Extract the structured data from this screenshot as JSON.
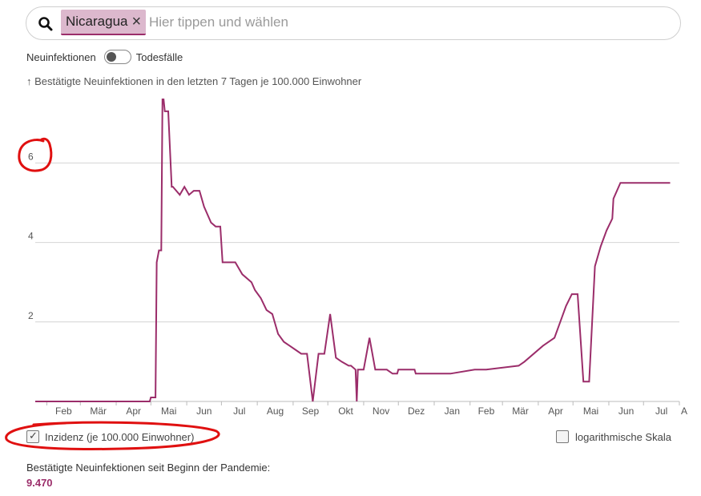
{
  "search": {
    "chip_label": "Nicaragua",
    "chip_remove_glyph": "×",
    "placeholder": "Hier tippen und wählen",
    "icon": "search-icon"
  },
  "toggle": {
    "left_label": "Neuinfektionen",
    "right_label": "Todesfälle",
    "state": "Neuinfektionen"
  },
  "chart_data": {
    "type": "line",
    "title": "↑ Bestätigte Neuinfektionen in den letzten 7 Tagen je 100.000 Einwohner",
    "ylim": [
      0,
      7.6
    ],
    "yticks": [
      2,
      4,
      6
    ],
    "xticks": [
      "Feb",
      "Mär",
      "Apr",
      "Mai",
      "Jun",
      "Jul",
      "Aug",
      "Sep",
      "Okt",
      "Nov",
      "Dez",
      "Jan",
      "Feb",
      "Mär",
      "Apr",
      "Mai",
      "Jun",
      "Jul",
      "A"
    ],
    "grid": true,
    "color": "#9b2d6a",
    "series": [
      {
        "x": [
          "2020-01-22",
          "2020-04-30",
          "2020-05-01",
          "2020-05-05",
          "2020-05-06",
          "2020-05-08",
          "2020-05-10",
          "2020-05-11",
          "2020-05-12",
          "2020-05-13",
          "2020-05-14",
          "2020-05-15",
          "2020-05-16",
          "2020-05-19",
          "2020-05-20",
          "2020-05-26",
          "2020-05-30",
          "2020-06-03",
          "2020-06-07",
          "2020-06-12",
          "2020-06-16",
          "2020-06-22",
          "2020-06-26",
          "2020-06-30",
          "2020-07-02",
          "2020-07-07",
          "2020-07-11",
          "2020-07-13",
          "2020-07-19",
          "2020-07-27",
          "2020-07-30",
          "2020-08-04",
          "2020-08-09",
          "2020-08-14",
          "2020-08-19",
          "2020-08-24",
          "2020-08-29",
          "2020-09-03",
          "2020-09-08",
          "2020-09-13",
          "2020-09-18",
          "2020-09-23",
          "2020-09-28",
          "2020-10-03",
          "2020-10-08",
          "2020-10-13",
          "2020-10-19",
          "2020-10-20",
          "2020-10-21",
          "2020-10-25",
          "2020-10-26",
          "2020-10-27",
          "2020-10-28",
          "2020-11-01",
          "2020-11-06",
          "2020-11-11",
          "2020-11-16",
          "2020-11-21",
          "2020-11-26",
          "2020-11-30",
          "2020-12-01",
          "2020-12-15",
          "2020-12-16",
          "2020-12-17",
          "2021-01-10",
          "2021-01-15",
          "2021-02-05",
          "2021-02-10",
          "2021-02-15",
          "2021-03-15",
          "2021-03-20",
          "2021-04-05",
          "2021-04-10",
          "2021-04-15",
          "2021-04-20",
          "2021-04-25",
          "2021-04-30",
          "2021-05-05",
          "2021-05-10",
          "2021-05-15",
          "2021-05-20",
          "2021-05-25",
          "2021-05-30",
          "2021-06-04",
          "2021-06-05",
          "2021-06-11",
          "2021-06-12",
          "2021-06-18",
          "2021-06-24",
          "2021-07-01",
          "2021-07-06",
          "2021-07-12",
          "2021-07-17",
          "2021-07-24"
        ],
        "y": [
          0,
          0,
          0.1,
          0.1,
          3.5,
          3.8,
          3.8,
          7.6,
          7.6,
          7.3,
          7.3,
          7.3,
          7.3,
          5.4,
          5.4,
          5.2,
          5.4,
          5.2,
          5.3,
          5.3,
          4.9,
          4.5,
          4.4,
          4.4,
          3.5,
          3.5,
          3.5,
          3.5,
          3.2,
          3.0,
          2.8,
          2.6,
          2.3,
          2.2,
          1.7,
          1.5,
          1.4,
          1.3,
          1.2,
          1.2,
          0,
          1.2,
          1.2,
          2.2,
          1.1,
          1.0,
          0.9,
          0.9,
          0.9,
          0.8,
          0,
          0.8,
          0.8,
          0.8,
          1.6,
          0.8,
          0.8,
          0.8,
          0.7,
          0.7,
          0.8,
          0.8,
          0.7,
          0.7,
          0.7,
          0.7,
          0.8,
          0.8,
          0.8,
          0.9,
          1.0,
          1.4,
          1.5,
          1.6,
          2.0,
          2.4,
          2.7,
          2.7,
          0.5,
          0.5,
          3.4,
          3.9,
          4.3,
          4.6,
          5.1,
          5.5,
          5.5,
          5.5,
          5.5,
          5.5,
          5.5,
          5.5,
          5.5,
          5.5
        ]
      }
    ]
  },
  "footer": {
    "incidence_checkbox_label": "Inzidenz (je 100.000 Einwohner)",
    "incidence_checked": true,
    "check_glyph": "✓",
    "log_scale_label": "logarithmische Skala",
    "log_scale_checked": false,
    "total_label": "Bestätigte Neuinfektionen seit Beginn der Pandemie:",
    "total_value": "9.470"
  },
  "annotation_color": "#e01010"
}
